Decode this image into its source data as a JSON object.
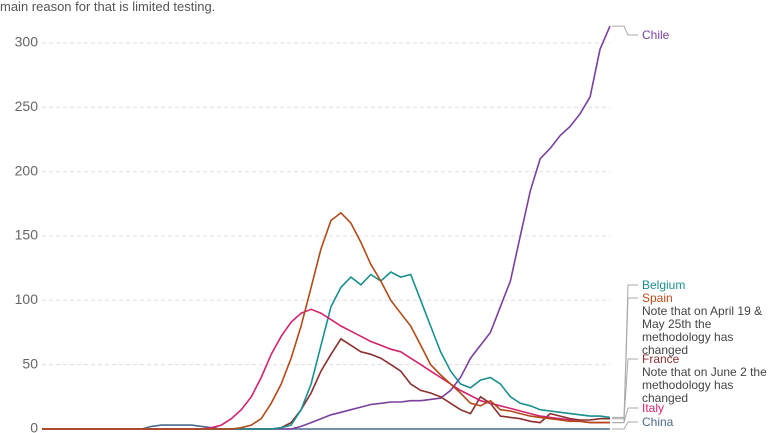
{
  "chart_data": {
    "type": "line",
    "subtitle": "main reason for that is limited testing.",
    "categories": [
      null,
      null,
      null,
      null,
      null,
      null,
      null,
      null,
      null,
      null,
      null,
      null,
      null,
      null,
      null,
      null,
      null,
      null,
      null,
      null,
      null,
      null,
      null,
      null,
      null,
      null,
      null,
      null,
      null,
      null,
      null,
      null,
      null,
      null,
      null,
      null,
      null,
      null,
      null,
      null,
      null,
      null,
      null,
      null,
      null,
      null,
      null,
      null,
      null,
      null,
      null,
      null,
      null,
      null,
      null,
      null,
      null,
      null
    ],
    "ylim": [
      0,
      310
    ],
    "yticks": [
      0,
      50,
      100,
      150,
      200,
      250,
      300
    ],
    "grid": true,
    "series": [
      {
        "name": "China",
        "color": "#4a6a8c",
        "values": [
          0,
          0,
          0,
          0,
          0,
          0,
          0,
          0,
          0,
          0,
          0,
          2,
          3,
          3,
          3,
          3,
          2,
          1,
          0,
          0,
          0,
          0,
          0,
          0,
          0,
          0,
          0,
          0,
          0,
          0,
          0,
          0,
          0,
          0,
          0,
          0,
          0,
          0,
          0,
          0,
          0,
          0,
          0,
          0,
          0,
          0,
          0,
          0,
          0,
          0,
          0,
          0,
          0,
          0,
          0,
          0,
          0,
          0
        ]
      },
      {
        "name": "Chile",
        "color": "#7b3f9e",
        "values": [
          0,
          0,
          0,
          0,
          0,
          0,
          0,
          0,
          0,
          0,
          0,
          0,
          0,
          0,
          0,
          0,
          0,
          0,
          0,
          0,
          0,
          0,
          0,
          0,
          0,
          0,
          2,
          5,
          8,
          11,
          13,
          15,
          17,
          19,
          20,
          21,
          21,
          22,
          22,
          23,
          24,
          30,
          40,
          55,
          65,
          75,
          95,
          115,
          150,
          185,
          210,
          218,
          228,
          235,
          245,
          258,
          295,
          313
        ]
      },
      {
        "name": "France",
        "color": "#8a2f2f",
        "note": "Note that on June 2 the methodology has changed",
        "values": [
          0,
          0,
          0,
          0,
          0,
          0,
          0,
          0,
          0,
          0,
          0,
          0,
          0,
          0,
          0,
          0,
          0,
          0,
          0,
          0,
          0,
          0,
          0,
          0,
          1,
          5,
          15,
          28,
          45,
          58,
          70,
          65,
          60,
          58,
          55,
          50,
          45,
          35,
          30,
          28,
          25,
          20,
          15,
          12,
          25,
          20,
          10,
          9,
          8,
          6,
          5,
          12,
          10,
          8,
          7,
          7,
          8,
          8
        ]
      },
      {
        "name": "Belgium",
        "color": "#1a8f8f",
        "values": [
          0,
          0,
          0,
          0,
          0,
          0,
          0,
          0,
          0,
          0,
          0,
          0,
          0,
          0,
          0,
          0,
          0,
          0,
          0,
          0,
          0,
          0,
          0,
          0,
          1,
          3,
          15,
          35,
          65,
          95,
          110,
          118,
          112,
          120,
          115,
          122,
          118,
          120,
          100,
          80,
          60,
          45,
          35,
          32,
          38,
          40,
          35,
          25,
          20,
          18,
          15,
          14,
          13,
          12,
          11,
          10,
          10,
          9
        ]
      },
      {
        "name": "Italy",
        "color": "#d1246f",
        "values": [
          0,
          0,
          0,
          0,
          0,
          0,
          0,
          0,
          0,
          0,
          0,
          0,
          0,
          0,
          0,
          0,
          0,
          1,
          3,
          8,
          15,
          25,
          40,
          58,
          72,
          83,
          90,
          93,
          90,
          85,
          80,
          76,
          72,
          68,
          65,
          62,
          60,
          55,
          50,
          45,
          40,
          35,
          30,
          26,
          22,
          20,
          18,
          16,
          14,
          12,
          10,
          9,
          8,
          7,
          6,
          5,
          5,
          5
        ]
      },
      {
        "name": "Spain",
        "color": "#b24a18",
        "note": "Note that on April 19 & May 25th the methodology has changed",
        "values": [
          0,
          0,
          0,
          0,
          0,
          0,
          0,
          0,
          0,
          0,
          0,
          0,
          0,
          0,
          0,
          0,
          0,
          0,
          0,
          0,
          1,
          3,
          8,
          20,
          35,
          55,
          80,
          110,
          140,
          162,
          168,
          160,
          145,
          128,
          115,
          100,
          90,
          80,
          65,
          50,
          42,
          35,
          28,
          20,
          18,
          22,
          15,
          14,
          12,
          10,
          9,
          8,
          7,
          6,
          6,
          5,
          5,
          5
        ]
      }
    ]
  }
}
